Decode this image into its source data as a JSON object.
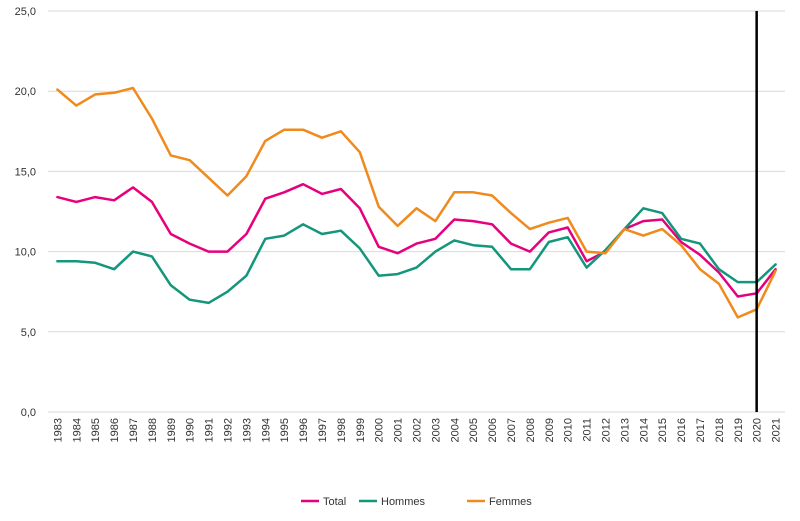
{
  "chart_data": {
    "type": "line",
    "x": [
      "1983",
      "1984",
      "1985",
      "1986",
      "1987",
      "1988",
      "1989",
      "1990",
      "1991",
      "1992",
      "1993",
      "1994",
      "1995",
      "1996",
      "1997",
      "1998",
      "1999",
      "2000",
      "2001",
      "2002",
      "2003",
      "2004",
      "2005",
      "2006",
      "2007",
      "2008",
      "2009",
      "2010",
      "2011",
      "2012",
      "2013",
      "2014",
      "2015",
      "2016",
      "2017",
      "2018",
      "2019",
      "2020",
      "2021"
    ],
    "ylim": [
      0,
      25
    ],
    "yticks": [
      "0,0",
      "5,0",
      "10,0",
      "15,0",
      "20,0",
      "25,0"
    ],
    "yticks_values": [
      0,
      5,
      10,
      15,
      20,
      25
    ],
    "grid": "horizontal",
    "legend_position": "bottom",
    "marker_line_x": "2020",
    "series": [
      {
        "name": "Total",
        "color": "#e6007e",
        "values": [
          13.4,
          13.1,
          13.4,
          13.2,
          14.0,
          13.1,
          11.1,
          10.5,
          10.0,
          10.0,
          11.1,
          13.3,
          13.7,
          14.2,
          13.6,
          13.9,
          12.7,
          10.3,
          9.9,
          10.5,
          10.8,
          12.0,
          11.9,
          11.7,
          10.5,
          10.0,
          11.2,
          11.5,
          9.4,
          10.0,
          11.4,
          11.9,
          12.0,
          10.6,
          9.8,
          8.7,
          7.2,
          7.4,
          8.9
        ]
      },
      {
        "name": "Hommes",
        "color": "#13967b",
        "values": [
          9.4,
          9.4,
          9.3,
          8.9,
          10.0,
          9.7,
          7.9,
          7.0,
          6.8,
          7.5,
          8.5,
          10.8,
          11.0,
          11.7,
          11.1,
          11.3,
          10.2,
          8.5,
          8.6,
          9.0,
          10.0,
          10.7,
          10.4,
          10.3,
          8.9,
          8.9,
          10.6,
          10.9,
          9.0,
          10.1,
          11.4,
          12.7,
          12.4,
          10.8,
          10.5,
          8.9,
          8.1,
          8.1,
          9.2
        ]
      },
      {
        "name": "Femmes",
        "color": "#f08a1d",
        "values": [
          20.1,
          19.1,
          19.8,
          19.9,
          20.2,
          18.3,
          16.0,
          15.7,
          14.6,
          13.5,
          14.7,
          16.9,
          17.6,
          17.6,
          17.1,
          17.5,
          16.2,
          12.8,
          11.6,
          12.7,
          11.9,
          13.7,
          13.7,
          13.5,
          12.4,
          11.4,
          11.8,
          12.1,
          10.0,
          9.9,
          11.4,
          11.0,
          11.4,
          10.4,
          8.9,
          8.0,
          5.9,
          6.4,
          8.8
        ]
      }
    ]
  }
}
